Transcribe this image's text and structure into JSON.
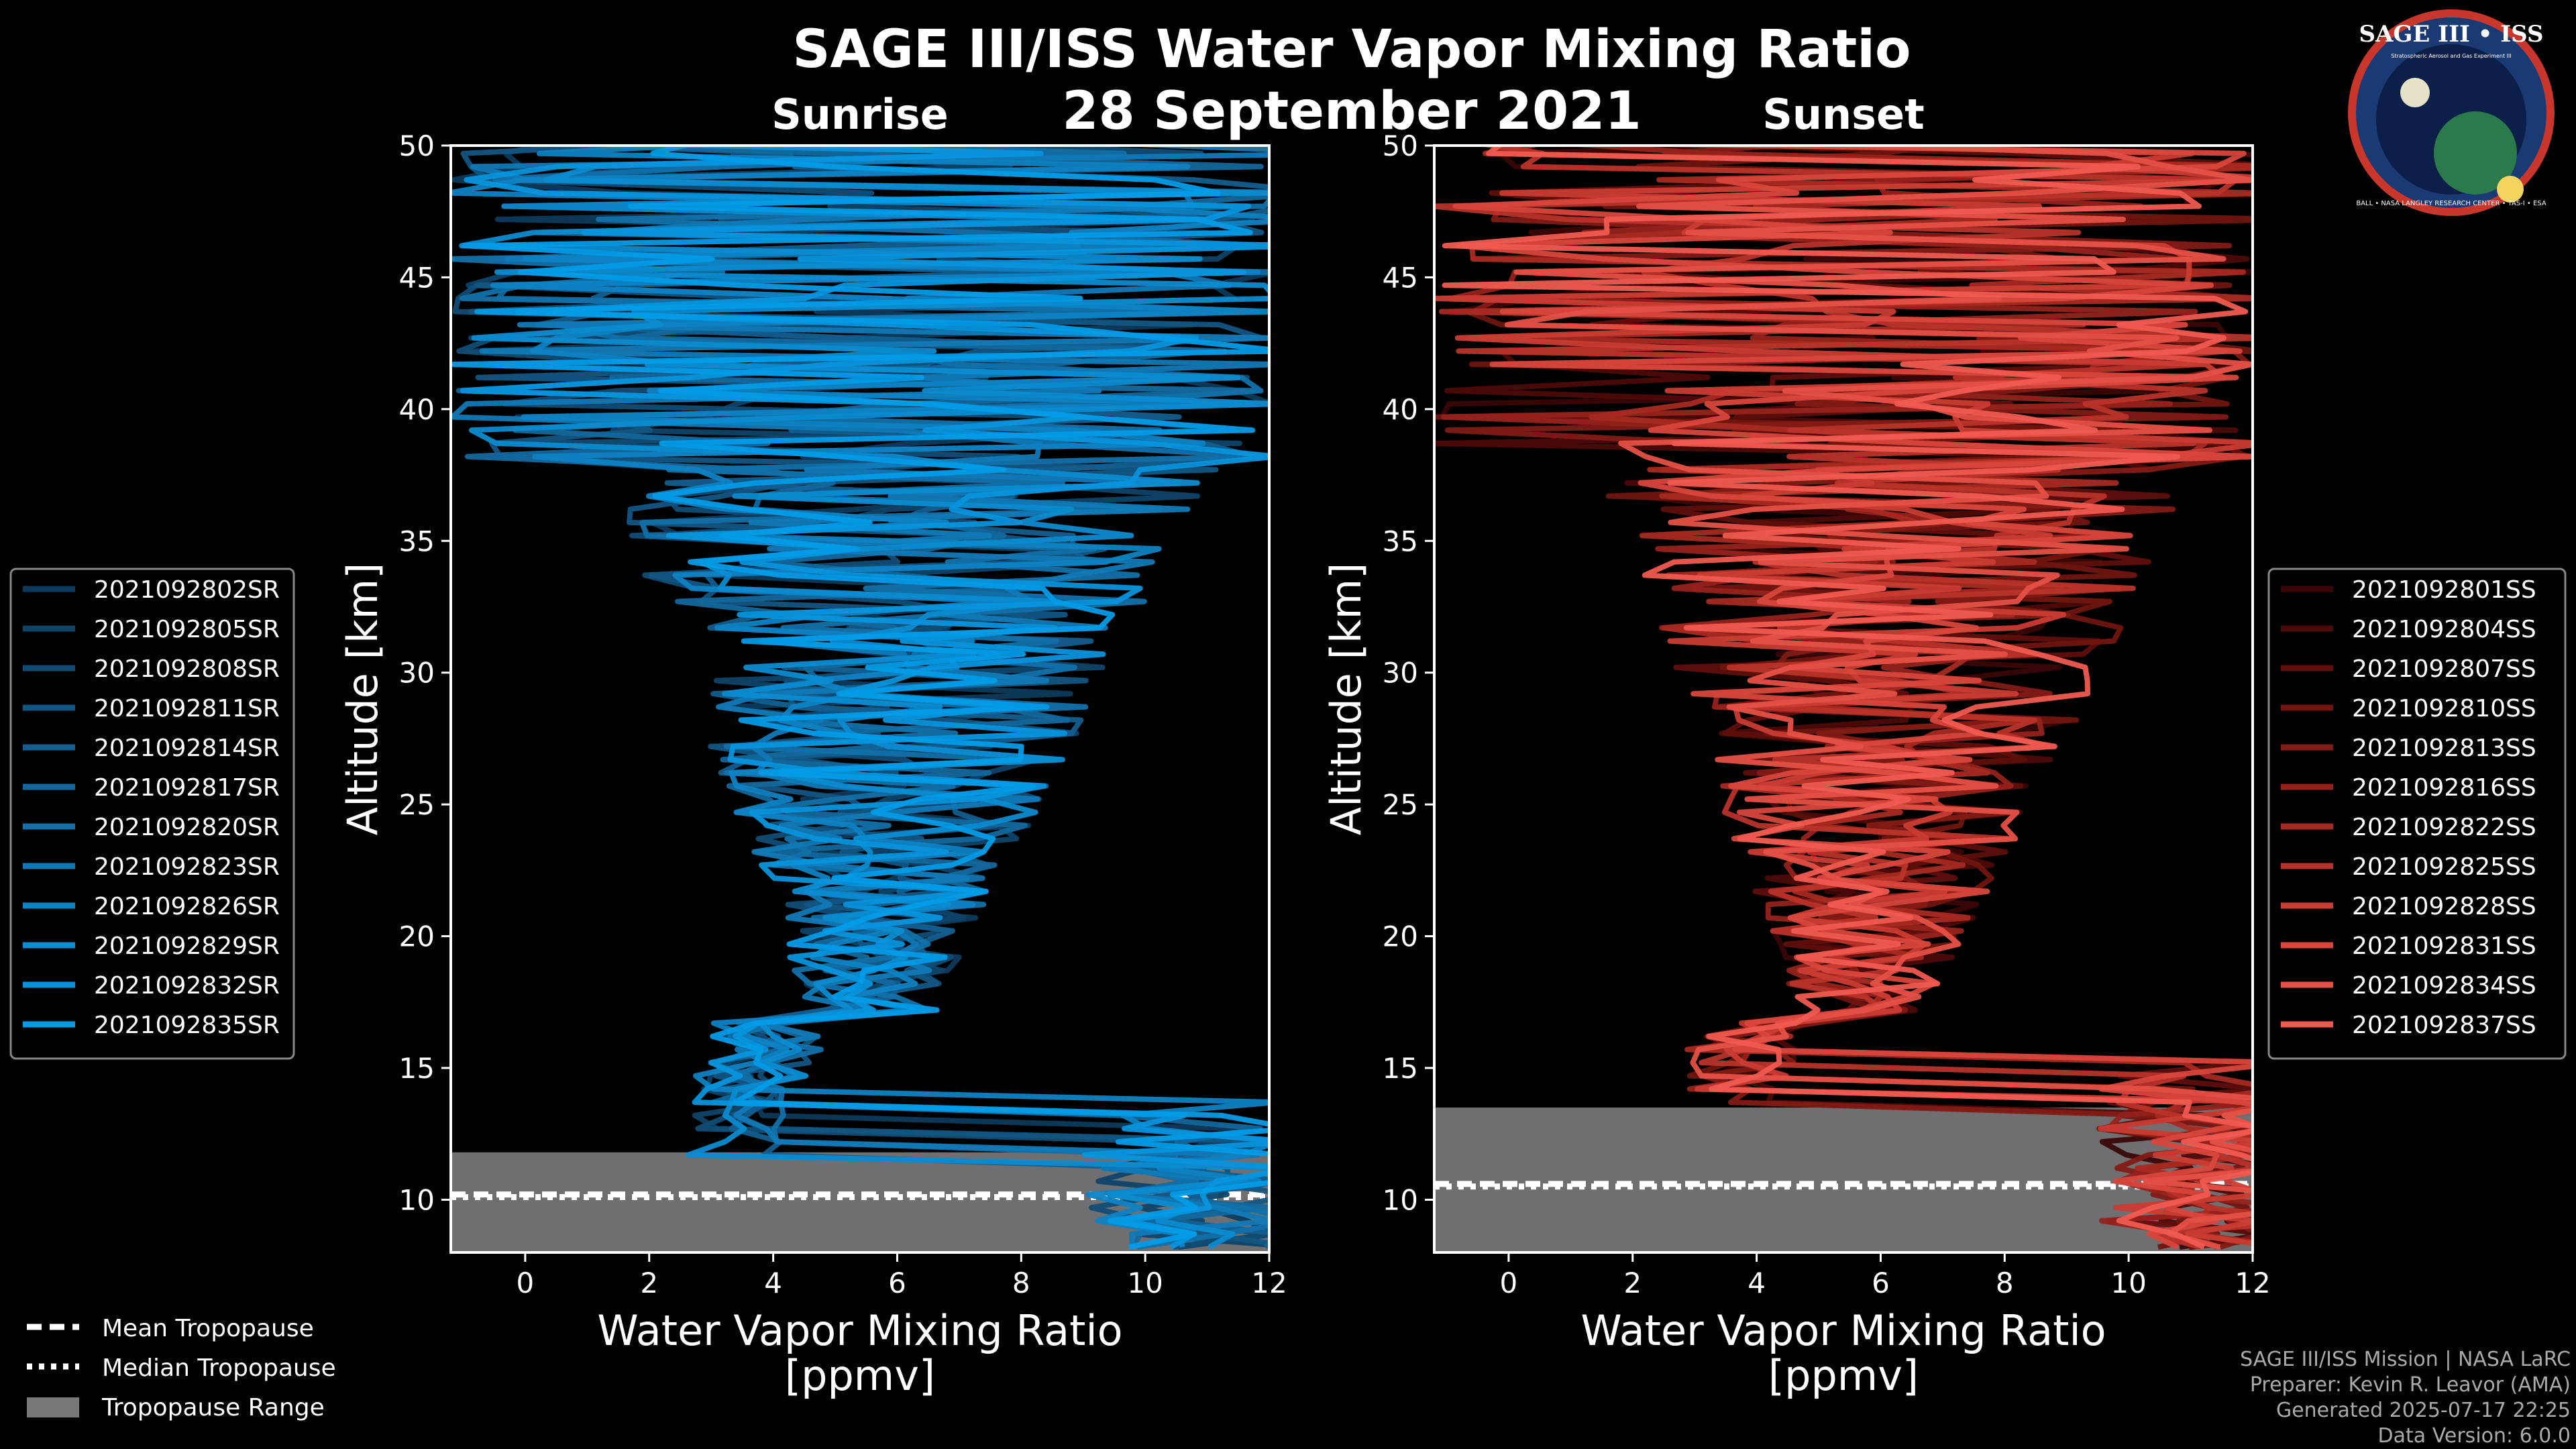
{
  "header": {
    "title": "SAGE III/ISS Water Vapor Mixing Ratio",
    "date": "28 September 2021",
    "left_subtitle": "Sunrise",
    "right_subtitle": "Sunset"
  },
  "logo": {
    "text": "SAGE III • ISS",
    "sub": "Stratospheric Aerosol and Gas Experiment III",
    "ring": "BALL • NASA LANGLEY RESEARCH CENTER • TAS-I • ESA"
  },
  "credits": {
    "line1": "SAGE III/ISS Mission | NASA LaRC",
    "line2": "Preparer: Kevin R. Leavor (AMA)",
    "line3": "Generated 2025-07-17 22:25",
    "line4": "Data Version: 6.0.0"
  },
  "legend_bottom": {
    "mean": "Mean Tropopause",
    "median": "Median Tropopause",
    "range": "Tropopause Range"
  },
  "chart_data": [
    {
      "type": "line",
      "panel": "sunrise",
      "title": "Sunrise",
      "xlabel_line1": "Water Vapor Mixing Ratio",
      "xlabel_line2": "[ppmv]",
      "ylabel": "Altitude [km]",
      "xlim": [
        -1.2,
        12
      ],
      "ylim": [
        8,
        50
      ],
      "xticks": [
        0,
        2,
        4,
        6,
        8,
        10,
        12
      ],
      "yticks": [
        10,
        15,
        20,
        25,
        30,
        35,
        40,
        45,
        50
      ],
      "tropopause": {
        "mean_km": 10.2,
        "median_km": 10.1,
        "range_km": [
          8.0,
          11.8
        ]
      },
      "series": [
        {
          "name": "2021092802SR",
          "color": "#0d3a5c"
        },
        {
          "name": "2021092805SR",
          "color": "#0f4368"
        },
        {
          "name": "2021092808SR",
          "color": "#114c75"
        },
        {
          "name": "2021092811SR",
          "color": "#125582"
        },
        {
          "name": "2021092814SR",
          "color": "#135e8f"
        },
        {
          "name": "2021092817SR",
          "color": "#13679c"
        },
        {
          "name": "2021092820SR",
          "color": "#1270a9"
        },
        {
          "name": "2021092823SR",
          "color": "#1179b6"
        },
        {
          "name": "2021092826SR",
          "color": "#0f82c3"
        },
        {
          "name": "2021092829SR",
          "color": "#0c8bd0"
        },
        {
          "name": "2021092832SR",
          "color": "#0893dc"
        },
        {
          "name": "2021092835SR",
          "color": "#039be7"
        }
      ]
    },
    {
      "type": "line",
      "panel": "sunset",
      "title": "Sunset",
      "xlabel_line1": "Water Vapor Mixing Ratio",
      "xlabel_line2": "[ppmv]",
      "ylabel": "Altitude [km]",
      "xlim": [
        -1.2,
        12
      ],
      "ylim": [
        8,
        50
      ],
      "xticks": [
        0,
        2,
        4,
        6,
        8,
        10,
        12
      ],
      "yticks": [
        10,
        15,
        20,
        25,
        30,
        35,
        40,
        45,
        50
      ],
      "tropopause": {
        "mean_km": 10.6,
        "median_km": 10.5,
        "range_km": [
          8.0,
          13.5
        ]
      },
      "series": [
        {
          "name": "2021092801SS",
          "color": "#3a0606"
        },
        {
          "name": "2021092804SS",
          "color": "#4c0a09"
        },
        {
          "name": "2021092807SS",
          "color": "#5e0f0c"
        },
        {
          "name": "2021092810SS",
          "color": "#701510"
        },
        {
          "name": "2021092813SS",
          "color": "#821b15"
        },
        {
          "name": "2021092816SS",
          "color": "#94221b"
        },
        {
          "name": "2021092822SS",
          "color": "#a62a22"
        },
        {
          "name": "2021092825SS",
          "color": "#b8332a"
        },
        {
          "name": "2021092828SS",
          "color": "#c93c33"
        },
        {
          "name": "2021092831SS",
          "color": "#d8463c"
        },
        {
          "name": "2021092834SS",
          "color": "#e55046"
        },
        {
          "name": "2021092837SS",
          "color": "#f05a50"
        }
      ]
    }
  ]
}
